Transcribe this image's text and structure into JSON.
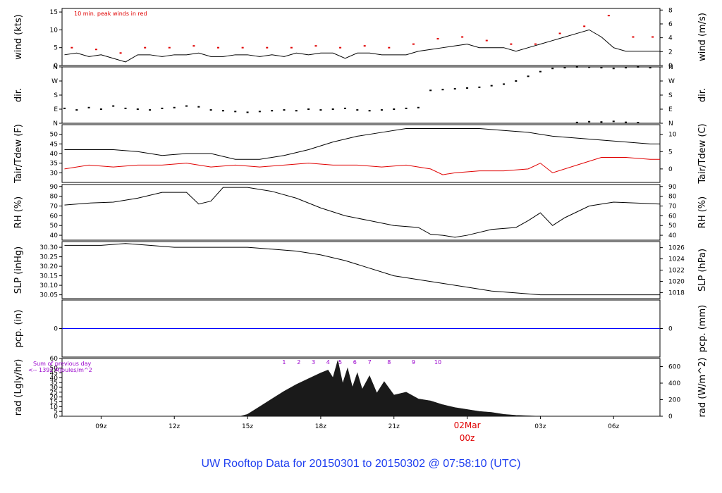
{
  "caption": "UW Rooftop Data for 20150301  to  20150302 @ 07:58:10  (UTC)",
  "chart_data": {
    "type": "line",
    "x_axis": {
      "unit": "hours (UTC)",
      "range": [
        7.4,
        31.9
      ],
      "ticks": [
        {
          "x": 9,
          "label": "09z"
        },
        {
          "x": 12,
          "label": "12z"
        },
        {
          "x": 15,
          "label": "15z"
        },
        {
          "x": 18,
          "label": "18z"
        },
        {
          "x": 21,
          "label": "21z"
        },
        {
          "x": 24,
          "label": "02Mar",
          "sublabel": "00z",
          "color": "#e00000"
        },
        {
          "x": 27,
          "label": "03z"
        },
        {
          "x": 30,
          "label": "06z"
        }
      ]
    },
    "panels": [
      {
        "id": "wind",
        "left_label": "wind (kts)",
        "right_label": "wind (m/s)",
        "ylim": [
          0,
          16
        ],
        "left_ticks": [
          0,
          5,
          10,
          15
        ],
        "right_ticks": [
          {
            "v": 0,
            "label": "0"
          },
          {
            "v": 3.89,
            "label": "2"
          },
          {
            "v": 7.78,
            "label": "4"
          },
          {
            "v": 11.66,
            "label": "6"
          },
          {
            "v": 15.55,
            "label": "8"
          }
        ],
        "annotation": "10 min. peak winds in red",
        "series": [
          {
            "style": "line",
            "color": "#000000",
            "x": [
              7.5,
              8,
              8.5,
              9,
              9.5,
              10,
              10.5,
              11,
              11.5,
              12,
              12.5,
              13,
              13.5,
              14,
              14.5,
              15,
              15.5,
              16,
              16.5,
              17,
              17.5,
              18,
              18.5,
              19,
              19.5,
              20,
              20.5,
              21,
              21.5,
              22,
              22.5,
              23,
              23.5,
              24,
              24.5,
              25,
              25.5,
              26,
              26.5,
              27,
              27.5,
              28,
              28.5,
              29,
              29.5,
              30,
              30.5,
              31,
              31.5,
              31.9
            ],
            "y": [
              3,
              3.5,
              2.5,
              3,
              2,
              1,
              3,
              3,
              2.5,
              3,
              3,
              3.5,
              2.5,
              2.5,
              3,
              3,
              2.5,
              3,
              2.5,
              3.5,
              3,
              3.5,
              3.5,
              2,
              3.5,
              3.5,
              3,
              3,
              3,
              4,
              4.5,
              5,
              5.5,
              6,
              5,
              5,
              5,
              4,
              5,
              6,
              7,
              8,
              9,
              10,
              8,
              5,
              4,
              4,
              4,
              4
            ]
          },
          {
            "style": "dots",
            "color": "#e00000",
            "x": [
              7.8,
              8.8,
              9.8,
              10.8,
              11.8,
              12.8,
              13.8,
              14.8,
              15.8,
              16.8,
              17.8,
              18.8,
              19.8,
              20.8,
              21.8,
              22.8,
              23.8,
              24.8,
              25.8,
              26.8,
              27.8,
              28.8,
              29.8,
              30.8,
              31.6
            ],
            "y": [
              5,
              4.5,
              3.5,
              5,
              5,
              5.5,
              5,
              5,
              5,
              5,
              5.5,
              5,
              5.5,
              5,
              6,
              7.5,
              8,
              7,
              6,
              6,
              9,
              11,
              14,
              8,
              8
            ]
          }
        ]
      },
      {
        "id": "dir",
        "left_label": "dir.",
        "right_label": "dir.",
        "ylim": [
          0,
          360
        ],
        "left_ticks": [
          {
            "v": 0,
            "label": "N"
          },
          {
            "v": 90,
            "label": "E"
          },
          {
            "v": 180,
            "label": "S"
          },
          {
            "v": 270,
            "label": "W"
          },
          {
            "v": 360,
            "label": "N"
          }
        ],
        "right_ticks": [
          {
            "v": 0,
            "label": "N"
          },
          {
            "v": 90,
            "label": "E"
          },
          {
            "v": 180,
            "label": "S"
          },
          {
            "v": 270,
            "label": "W"
          },
          {
            "v": 360,
            "label": "N"
          }
        ],
        "series": [
          {
            "style": "dots",
            "color": "#000000",
            "x": [
              7.5,
              8,
              8.5,
              9,
              9.5,
              10,
              10.5,
              11,
              11.5,
              12,
              12.5,
              13,
              13.5,
              14,
              14.5,
              15,
              15.5,
              16,
              16.5,
              17,
              17.5,
              18,
              18.5,
              19,
              19.5,
              20,
              20.5,
              21,
              21.5,
              22,
              22.5,
              23,
              23.5,
              24,
              24.5,
              25,
              25.5,
              26,
              26.5,
              27,
              27.5,
              28,
              28.5,
              29,
              29.5,
              30,
              30.5,
              31,
              31.5
            ],
            "y": [
              95,
              85,
              100,
              90,
              110,
              95,
              90,
              85,
              95,
              100,
              110,
              105,
              85,
              80,
              75,
              70,
              75,
              80,
              85,
              80,
              90,
              85,
              90,
              95,
              85,
              80,
              85,
              90,
              95,
              100,
              210,
              215,
              220,
              225,
              230,
              240,
              250,
              270,
              300,
              330,
              350,
              355,
              360,
              358,
              355,
              350,
              355,
              360,
              355
            ]
          },
          {
            "style": "dots",
            "color": "#000000",
            "x": [
              28.5,
              29,
              29.5,
              30,
              30.5,
              31
            ],
            "y": [
              5,
              10,
              8,
              12,
              6,
              4
            ]
          }
        ]
      },
      {
        "id": "temp",
        "left_label": "Tair/Tdew (F)",
        "right_label": "Tair/Tdew (C)",
        "ylim": [
          25,
          55
        ],
        "left_ticks": [
          30,
          35,
          40,
          45,
          50
        ],
        "right_ticks": [
          {
            "v": 32,
            "label": "0"
          },
          {
            "v": 41,
            "label": "5"
          },
          {
            "v": 50,
            "label": "10"
          }
        ],
        "series": [
          {
            "name": "Tair",
            "style": "line",
            "color": "#000000",
            "x": [
              7.5,
              8.5,
              9.5,
              10.5,
              11.5,
              12.5,
              13.5,
              14.5,
              15.5,
              16.5,
              17.5,
              18.5,
              19.5,
              20.5,
              21.5,
              22.5,
              23.5,
              24.5,
              25.5,
              26.5,
              27.5,
              28.5,
              29.5,
              30.5,
              31.5,
              31.9
            ],
            "y": [
              42,
              42,
              42,
              41,
              39,
              40,
              40,
              37,
              37,
              39,
              42,
              46,
              49,
              51,
              53,
              53,
              53,
              53,
              52,
              51,
              49,
              48,
              47,
              46,
              45,
              45
            ]
          },
          {
            "name": "Tdew",
            "style": "line",
            "color": "#e00000",
            "x": [
              7.5,
              8.5,
              9.5,
              10.5,
              11.5,
              12.5,
              13.5,
              14.5,
              15.5,
              16.5,
              17.5,
              18.5,
              19.5,
              20.5,
              21.5,
              22.5,
              23,
              23.5,
              24.5,
              25.5,
              26.5,
              27,
              27.5,
              28.5,
              29.5,
              30.5,
              31.5,
              31.9
            ],
            "y": [
              32,
              34,
              33,
              34,
              34,
              35,
              33,
              34,
              33,
              34,
              35,
              34,
              34,
              33,
              34,
              32,
              29,
              30,
              31,
              31,
              32,
              35,
              30,
              34,
              38,
              38,
              37,
              37
            ]
          }
        ]
      },
      {
        "id": "rh",
        "left_label": "RH (%)",
        "right_label": "RH (%)",
        "ylim": [
          35,
          92
        ],
        "left_ticks": [
          40,
          50,
          60,
          70,
          80,
          90
        ],
        "right_ticks": [
          {
            "v": 40,
            "label": "40"
          },
          {
            "v": 50,
            "label": "50"
          },
          {
            "v": 60,
            "label": "60"
          },
          {
            "v": 70,
            "label": "70"
          },
          {
            "v": 80,
            "label": "80"
          },
          {
            "v": 90,
            "label": "90"
          }
        ],
        "series": [
          {
            "style": "line",
            "color": "#000000",
            "x": [
              7.5,
              8.5,
              9.5,
              10.5,
              11.5,
              12.5,
              13,
              13.5,
              14,
              15,
              16,
              17,
              18,
              19,
              20,
              21,
              22,
              22.5,
              23,
              23.5,
              24,
              25,
              26,
              26.5,
              27,
              27.5,
              28,
              29,
              30,
              31,
              31.9
            ],
            "y": [
              71,
              73,
              74,
              78,
              84,
              84,
              72,
              75,
              89,
              89,
              85,
              78,
              68,
              60,
              55,
              50,
              48,
              41,
              40,
              38,
              40,
              46,
              48,
              55,
              63,
              50,
              58,
              70,
              74,
              73,
              72
            ]
          }
        ]
      },
      {
        "id": "slp",
        "left_label": "SLP (inHg)",
        "right_label": "SLP (hPa)",
        "ylim": [
          30.03,
          30.33
        ],
        "left_ticks": [
          30.05,
          30.1,
          30.15,
          30.2,
          30.25,
          30.3
        ],
        "right_ticks": [
          {
            "v": 30.062,
            "label": "1018"
          },
          {
            "v": 30.121,
            "label": "1020"
          },
          {
            "v": 30.18,
            "label": "1022"
          },
          {
            "v": 30.239,
            "label": "1024"
          },
          {
            "v": 30.298,
            "label": "1026"
          }
        ],
        "series": [
          {
            "style": "line",
            "color": "#000000",
            "x": [
              7.5,
              9,
              10,
              11,
              12,
              13,
              14,
              15,
              16,
              17,
              18,
              19,
              20,
              21,
              22,
              23,
              24,
              25,
              26,
              27,
              28,
              29,
              30,
              31,
              31.9
            ],
            "y": [
              30.31,
              30.31,
              30.32,
              30.31,
              30.3,
              30.3,
              30.3,
              30.3,
              30.29,
              30.28,
              30.26,
              30.23,
              30.19,
              30.15,
              30.13,
              30.11,
              30.09,
              30.07,
              30.06,
              30.05,
              30.05,
              30.05,
              30.05,
              30.05,
              30.05
            ]
          }
        ]
      },
      {
        "id": "pcp",
        "left_label": "pcp. (in)",
        "right_label": "pcp. (mm)",
        "ylim": [
          -1,
          1
        ],
        "left_ticks": [
          {
            "v": 0,
            "label": "0"
          }
        ],
        "right_ticks": [
          {
            "v": 0,
            "label": "0"
          }
        ],
        "series": [
          {
            "style": "line",
            "color": "#0000ff",
            "x": [
              7.4,
              31.9
            ],
            "y": [
              0,
              0
            ]
          }
        ]
      },
      {
        "id": "rad",
        "left_label": "rad (Lgly/hr)",
        "right_label": "rad (W/m^2)",
        "ylim": [
          0,
          60
        ],
        "left_ticks": [
          0,
          5,
          10,
          15,
          20,
          25,
          30,
          35,
          40,
          45,
          50,
          60
        ],
        "right_ticks": [
          {
            "v": 0,
            "label": "0"
          },
          {
            "v": 17.2,
            "label": "200"
          },
          {
            "v": 34.4,
            "label": "400"
          },
          {
            "v": 51.6,
            "label": "600"
          }
        ],
        "annotation": "Sum of previous day",
        "annotation2": "<-- 1392 MJoules/m^2",
        "hour_marks": [
          {
            "x": 16.5,
            "label": "1"
          },
          {
            "x": 17.1,
            "label": "2"
          },
          {
            "x": 17.7,
            "label": "3"
          },
          {
            "x": 18.3,
            "label": "4"
          },
          {
            "x": 18.8,
            "label": "5"
          },
          {
            "x": 19.4,
            "label": "6"
          },
          {
            "x": 20,
            "label": "7"
          },
          {
            "x": 20.8,
            "label": "8"
          },
          {
            "x": 21.8,
            "label": "9"
          },
          {
            "x": 22.8,
            "label": "10"
          }
        ],
        "series": [
          {
            "style": "area",
            "color": "#1a1a1a",
            "x": [
              7.4,
              14,
              14.7,
              15,
              15.5,
              16,
              16.5,
              17,
              17.5,
              18,
              18.3,
              18.5,
              18.7,
              18.9,
              19.1,
              19.3,
              19.5,
              19.7,
              20,
              20.3,
              20.6,
              21,
              21.5,
              22,
              22.5,
              23,
              23.5,
              24,
              24.5,
              25,
              25.5,
              26,
              27,
              31.9
            ],
            "y": [
              0,
              0,
              0,
              2,
              10,
              18,
              26,
              33,
              39,
              45,
              48,
              40,
              58,
              34,
              50,
              30,
              45,
              28,
              42,
              24,
              36,
              22,
              25,
              18,
              16,
              12,
              9,
              7,
              5,
              4,
              2,
              1,
              0,
              0
            ]
          }
        ]
      }
    ]
  }
}
